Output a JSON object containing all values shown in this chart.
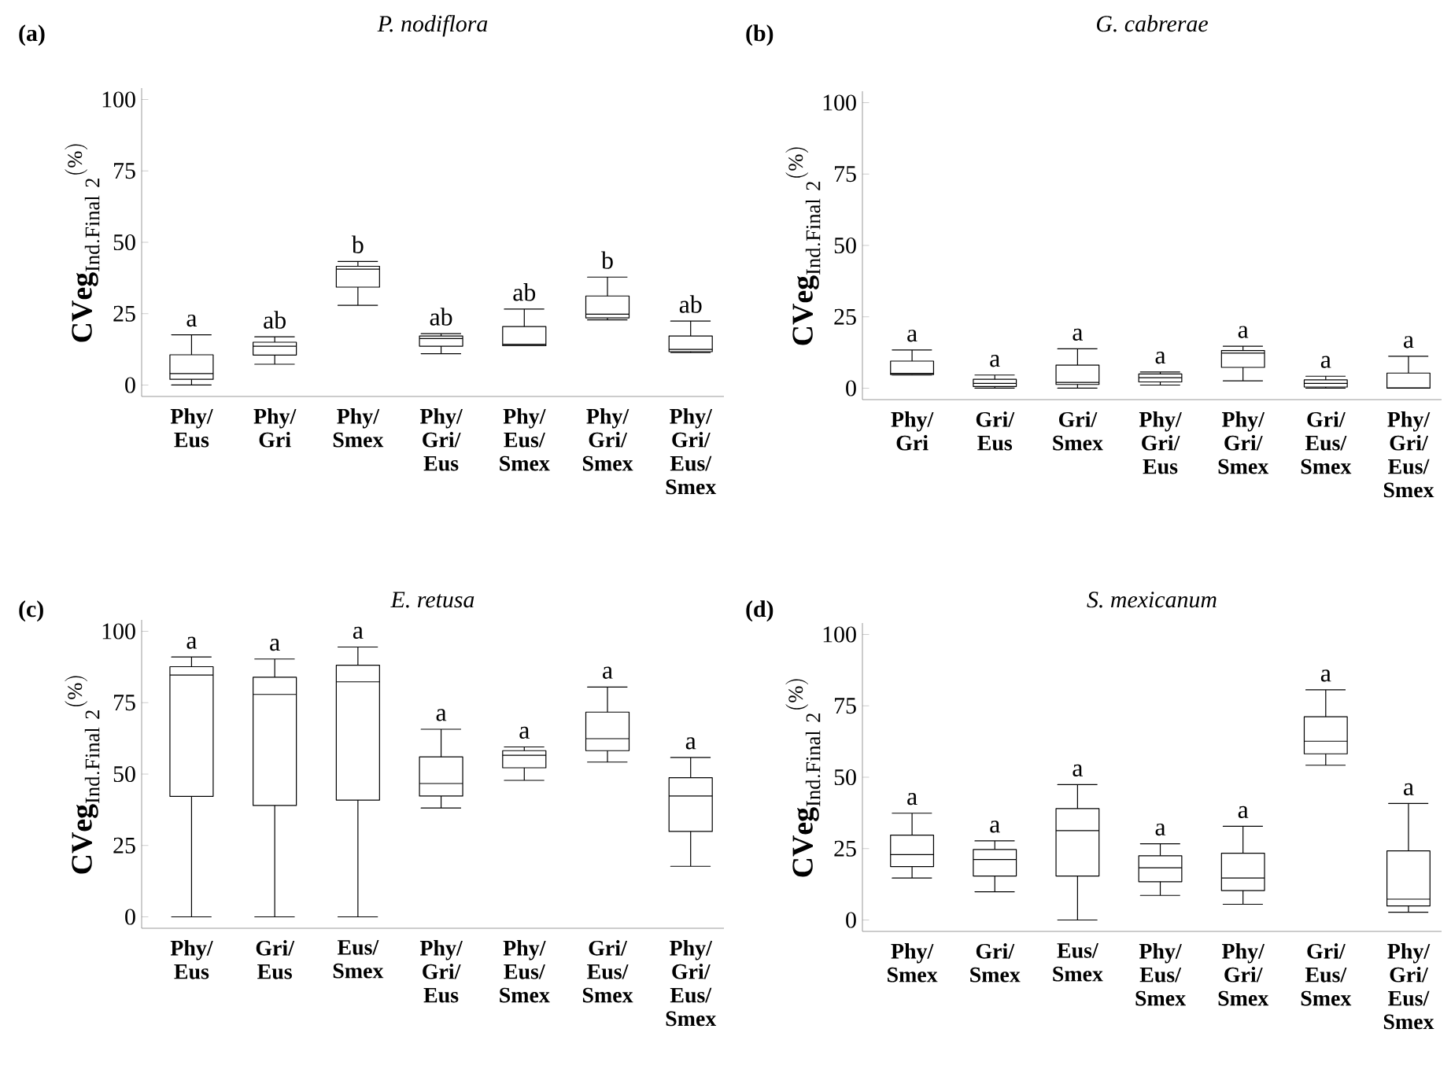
{
  "chart_data": [
    {
      "type": "box",
      "title": "P. nodiflora",
      "ylabel": "\\mathbf{CVeg}_{\\mathrm{Ind.Final\\ 2}}{}^{(\\%)}",
      "color": "#000000",
      "categories": [
        "Phy/Eus",
        "Phy/Gri",
        "Phy/Smex",
        "Phy/Gri/Eus",
        "Phy/Eus/Smex",
        "Phy/Gri/Smex",
        "Phy/Gri/Eus/Smex"
      ],
      "boxes": [
        {
          "low": 0,
          "q1": 2,
          "median": 4,
          "q3": 10.6,
          "high": 17.6
        },
        {
          "low": 7.3,
          "q1": 10.5,
          "median": 13.6,
          "q3": 15,
          "high": 16.9
        },
        {
          "low": 27.9,
          "q1": 34.3,
          "median": 40.6,
          "q3": 41.6,
          "high": 43.3
        },
        {
          "low": 11,
          "q1": 13.6,
          "median": 16.3,
          "q3": 17.2,
          "high": 18
        },
        {
          "low": 13.8,
          "q1": 13.8,
          "median": 14.3,
          "q3": 20.5,
          "high": 26.6
        },
        {
          "low": 22.8,
          "q1": 23.5,
          "median": 24.8,
          "q3": 31.2,
          "high": 37.8
        },
        {
          "low": 11.4,
          "q1": 11.7,
          "median": 12.5,
          "q3": 17.2,
          "high": 22.4
        }
      ],
      "ylim": [
        -4,
        104
      ],
      "yticks": [
        0,
        25,
        50,
        75,
        100
      ],
      "annotations": [
        "(a)",
        "a",
        "ab",
        "b",
        "ab",
        "ab",
        "b",
        "ab"
      ]
    },
    {
      "type": "box",
      "title": "G. cabrerae",
      "ylabel": "\\mathbf{CVeg}_{\\mathrm{Ind.Final\\ 2}}{}^{(\\%)}",
      "color": "#000000",
      "categories": [
        "Phy/Gri",
        "Gri/Eus",
        "Gri/Smex",
        "Phy/Gri/Eus",
        "Phy/Gri/Smex",
        "Gri/Eus/Smex",
        "Phy/Gri/Eus/Smex"
      ],
      "boxes": [
        {
          "low": 4.6,
          "q1": 4.8,
          "median": 5.2,
          "q3": 9.5,
          "high": 13.4
        },
        {
          "low": 0,
          "q1": 0.6,
          "median": 1.7,
          "q3": 3.1,
          "high": 4.6
        },
        {
          "low": 0,
          "q1": 1.3,
          "median": 2,
          "q3": 8.1,
          "high": 13.8
        },
        {
          "low": 1.1,
          "q1": 2.2,
          "median": 3.7,
          "q3": 5,
          "high": 5.7
        },
        {
          "low": 2.6,
          "q1": 7.3,
          "median": 12.3,
          "q3": 13.2,
          "high": 14.7
        },
        {
          "low": 0,
          "q1": 0.4,
          "median": 1.7,
          "q3": 2.9,
          "high": 4.2
        },
        {
          "low": 0,
          "q1": 0,
          "median": 0,
          "q3": 5.3,
          "high": 11.2
        }
      ],
      "ylim": [
        -4,
        104
      ],
      "yticks": [
        0,
        25,
        50,
        75,
        100
      ],
      "annotations": [
        "(b)",
        "a",
        "a",
        "a",
        "a",
        "a",
        "a",
        "a"
      ]
    },
    {
      "type": "box",
      "title": "E. retusa",
      "ylabel": "\\mathbf{CVeg}_{\\mathrm{Ind.Final\\ 2}}{}^{(\\%)}",
      "color": "#000000",
      "categories": [
        "Phy/Eus",
        "Gri/Eus",
        "Eus/Smex",
        "Phy/Gri/Eus",
        "Phy/Eus/Smex",
        "Gri/Eus/Smex",
        "Phy/Gri/Eus/Smex"
      ],
      "boxes": [
        {
          "low": 0,
          "q1": 42.2,
          "median": 84.7,
          "q3": 87.6,
          "high": 91
        },
        {
          "low": 0,
          "q1": 39,
          "median": 77.9,
          "q3": 83.9,
          "high": 90.3
        },
        {
          "low": 0,
          "q1": 40.9,
          "median": 82.3,
          "q3": 88.1,
          "high": 94.5
        },
        {
          "low": 38.1,
          "q1": 42.3,
          "median": 46.7,
          "q3": 56,
          "high": 65.7
        },
        {
          "low": 47.8,
          "q1": 52.2,
          "median": 56.6,
          "q3": 58.2,
          "high": 59.5
        },
        {
          "low": 54.2,
          "q1": 58.2,
          "median": 62.4,
          "q3": 71.7,
          "high": 80.5
        },
        {
          "low": 17.7,
          "q1": 29.9,
          "median": 42.3,
          "q3": 48.7,
          "high": 55.8
        }
      ],
      "ylim": [
        -4,
        104
      ],
      "yticks": [
        0,
        25,
        50,
        75,
        100
      ],
      "annotations": [
        "(c)",
        "a",
        "a",
        "a",
        "a",
        "a",
        "a",
        "a"
      ]
    },
    {
      "type": "box",
      "title": "S. mexicanum",
      "ylabel": "\\mathbf{CVeg}_{\\mathrm{Ind.Final\\ 2}}{}^{(\\%)}",
      "color": "#000000",
      "categories": [
        "Phy/Smex",
        "Gri/Smex",
        "Eus/Smex",
        "Phy/Eus/Smex",
        "Phy/Gri/Smex",
        "Gri/Eus/Smex",
        "Phy/Gri/Eus/Smex"
      ],
      "boxes": [
        {
          "low": 14.7,
          "q1": 18.7,
          "median": 22.9,
          "q3": 29.7,
          "high": 37.4
        },
        {
          "low": 9.9,
          "q1": 15.4,
          "median": 21.2,
          "q3": 24.7,
          "high": 27.7
        },
        {
          "low": 0,
          "q1": 15.4,
          "median": 31.3,
          "q3": 39,
          "high": 47.4
        },
        {
          "low": 8.6,
          "q1": 13.4,
          "median": 18.3,
          "q3": 22.5,
          "high": 26.7
        },
        {
          "low": 5.5,
          "q1": 10.3,
          "median": 14.7,
          "q3": 23.4,
          "high": 32.8
        },
        {
          "low": 54.2,
          "q1": 58.2,
          "median": 62.6,
          "q3": 71.2,
          "high": 80.6
        },
        {
          "low": 2.7,
          "q1": 4.9,
          "median": 7.3,
          "q3": 24.2,
          "high": 40.8
        }
      ],
      "ylim": [
        -4,
        104
      ],
      "yticks": [
        0,
        25,
        50,
        75,
        100
      ],
      "annotations": [
        "(d)",
        "a",
        "a",
        "a",
        "a",
        "a",
        "a",
        "a"
      ]
    }
  ]
}
